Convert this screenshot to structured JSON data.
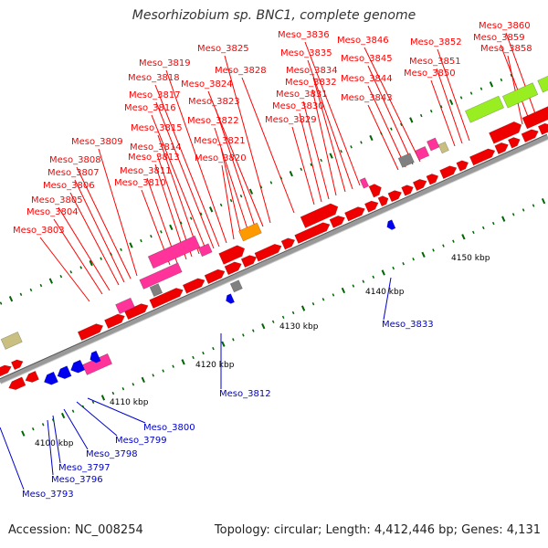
{
  "title": "Mesorhizobium sp. BNC1, complete genome",
  "footer": {
    "accession": "Accession: NC_008254",
    "summary": "Topology: circular; Length: 4,412,446 bp; Genes: 4,131"
  },
  "ticks": [
    "4100 kbp",
    "4110 kbp",
    "4120 kbp",
    "4130 kbp",
    "4140 kbp",
    "4150 kbp"
  ],
  "colors": {
    "forward_label": "#ff0000",
    "reverse_label": "#0000cc",
    "cds": "#ee0000",
    "rna": "#ff3399",
    "reverse_cds": "#0000ee",
    "gray": "#808080",
    "lime": "#99ee22",
    "olive": "#c8bf80",
    "orange": "#ff9900",
    "backbone": "#999999",
    "tick": "#006600"
  },
  "forward_labels": [
    "Meso_3803",
    "Meso_3804",
    "Meso_3805",
    "Meso_3806",
    "Meso_3807",
    "Meso_3808",
    "Meso_3809",
    "Meso_3810",
    "Meso_3811",
    "Meso_3813",
    "Meso_3814",
    "Meso_3815",
    "Meso_3816",
    "Meso_3817",
    "Meso_3818",
    "Meso_3819",
    "Meso_3820",
    "Meso_3821",
    "Meso_3822",
    "Meso_3823",
    "Meso_3824",
    "Meso_3825",
    "Meso_3828",
    "Meso_3829",
    "Meso_3830",
    "Meso_3831",
    "Meso_3832",
    "Meso_3834",
    "Meso_3835",
    "Meso_3836",
    "Meso_3843",
    "Meso_3844",
    "Meso_3845",
    "Meso_3846",
    "Meso_3850",
    "Meso_3851",
    "Meso_3852",
    "Meso_3858",
    "Meso_3859",
    "Meso_3860"
  ],
  "reverse_labels": [
    "Meso_3793",
    "Meso_3796",
    "Meso_3797",
    "Meso_3798",
    "Meso_3799",
    "Meso_3800",
    "Meso_3812",
    "Meso_3833"
  ]
}
